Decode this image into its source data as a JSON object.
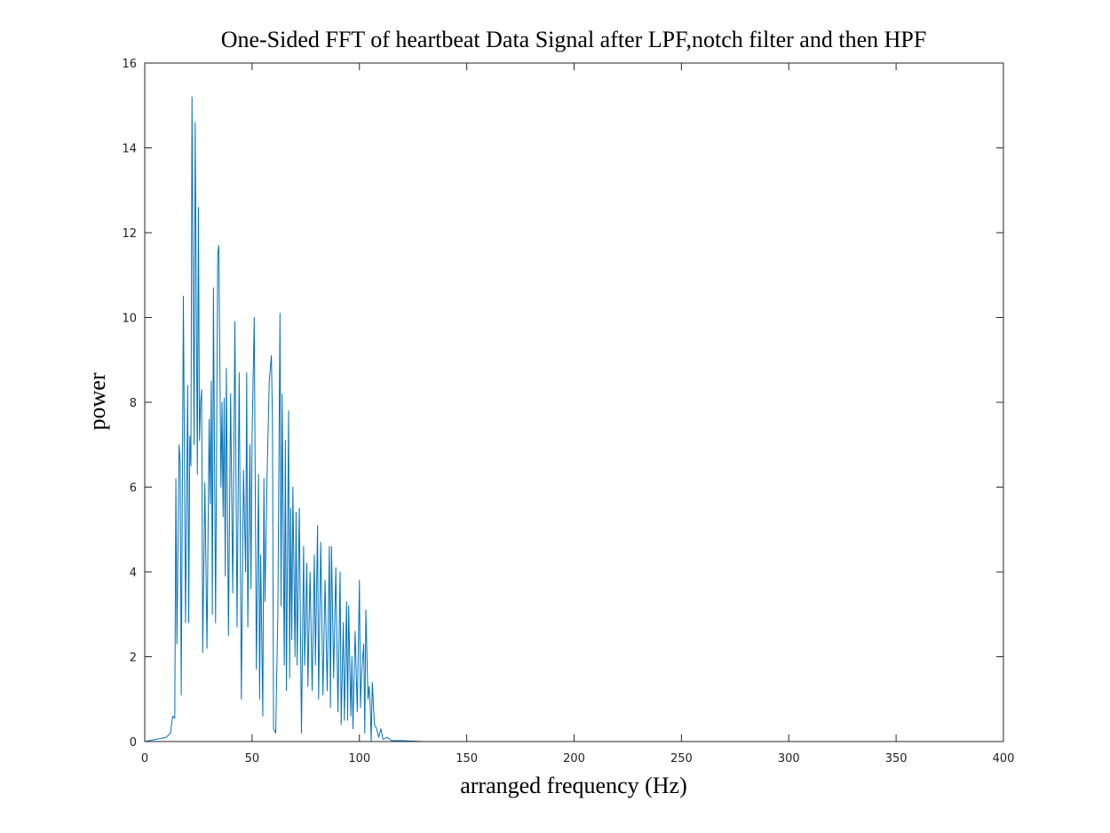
{
  "chart_data": {
    "type": "line",
    "title": "One-Sided FFT of heartbeat Data Signal after LPF,notch filter and then HPF",
    "x_label": "arranged frequency (Hz)",
    "y_label": "power",
    "xlim": [
      0,
      400
    ],
    "ylim": [
      0,
      16
    ],
    "xticks": [
      0,
      50,
      100,
      150,
      200,
      250,
      300,
      350,
      400
    ],
    "yticks": [
      0,
      2,
      4,
      6,
      8,
      10,
      12,
      14,
      16
    ],
    "box": true,
    "series": [
      {
        "color": "#0072bd",
        "x": [
          0,
          10,
          12,
          13,
          14,
          14.5,
          15,
          16,
          16.5,
          17,
          18,
          19,
          20,
          20.5,
          21,
          21.5,
          22,
          23,
          23.5,
          24.5,
          25,
          25.5,
          26,
          26.5,
          27,
          28,
          29,
          30,
          30.5,
          31,
          31.5,
          32,
          33,
          34,
          34.5,
          35.5,
          36,
          36.5,
          37,
          37.5,
          38,
          39,
          40,
          41,
          42,
          43,
          44,
          45,
          46,
          47,
          47.5,
          48,
          49,
          49.5,
          50,
          51,
          52,
          53,
          53.5,
          54,
          55,
          55.5,
          56,
          57,
          58,
          59,
          59.5,
          60,
          61,
          62,
          63,
          63.5,
          64,
          65,
          65.5,
          66,
          67,
          67.5,
          68,
          68.5,
          69,
          70,
          70.5,
          71,
          72,
          73,
          74,
          74.5,
          75.5,
          76,
          77,
          78,
          79,
          79.5,
          80.5,
          81,
          82,
          83,
          84,
          85,
          86,
          86.5,
          87,
          88,
          89,
          90,
          91,
          91.5,
          92.5,
          93,
          94,
          94.5,
          95,
          96,
          96.5,
          97,
          98,
          99,
          100,
          100.5,
          101,
          102,
          102.5,
          103,
          104,
          104.5,
          105,
          105.5,
          106,
          107,
          108,
          109,
          110,
          111,
          113,
          115,
          120,
          130,
          200,
          400
        ],
        "values": [
          0,
          0.1,
          0.2,
          0.6,
          0.55,
          6.2,
          2.3,
          7.0,
          6.6,
          1.1,
          10.5,
          2.8,
          8.4,
          2.8,
          7.2,
          6.5,
          15.2,
          7.0,
          14.6,
          6.3,
          12.6,
          7.1,
          8.0,
          8.3,
          2.1,
          6.1,
          2.2,
          7.6,
          5.6,
          8.5,
          3.0,
          10.7,
          2.8,
          11.5,
          11.7,
          6.0,
          8.0,
          5.3,
          8.1,
          3.9,
          8.8,
          2.5,
          8.2,
          3.5,
          9.9,
          2.7,
          8.7,
          1.0,
          6.4,
          4.0,
          8.7,
          2.7,
          7.0,
          3.6,
          7.2,
          10.0,
          1.7,
          6.3,
          1.0,
          4.4,
          0.6,
          6.2,
          3.3,
          6.3,
          8.5,
          9.1,
          7.5,
          0.3,
          0.2,
          3.0,
          10.1,
          3.2,
          8.2,
          1.8,
          7.1,
          1.2,
          7.8,
          1.5,
          5.5,
          2.4,
          6.0,
          2.0,
          5.4,
          1.8,
          5.5,
          0.2,
          4.6,
          1.8,
          4.2,
          1.3,
          4.0,
          1.2,
          4.4,
          1.8,
          5.1,
          1.0,
          4.7,
          1.1,
          3.8,
          1.2,
          4.6,
          0.8,
          4.6,
          1.5,
          4.1,
          0.7,
          4.0,
          0.4,
          2.8,
          0.5,
          3.3,
          0.5,
          3.2,
          0.6,
          2.0,
          0.3,
          2.6,
          0.7,
          3.8,
          0.8,
          1.6,
          2.3,
          0.2,
          3.1,
          1.0,
          1.3,
          0.9,
          0.0,
          1.4,
          0.4,
          0.3,
          0.1,
          0.3,
          0.05,
          0.1,
          0.02,
          0.02,
          0,
          0,
          0
        ]
      }
    ]
  }
}
